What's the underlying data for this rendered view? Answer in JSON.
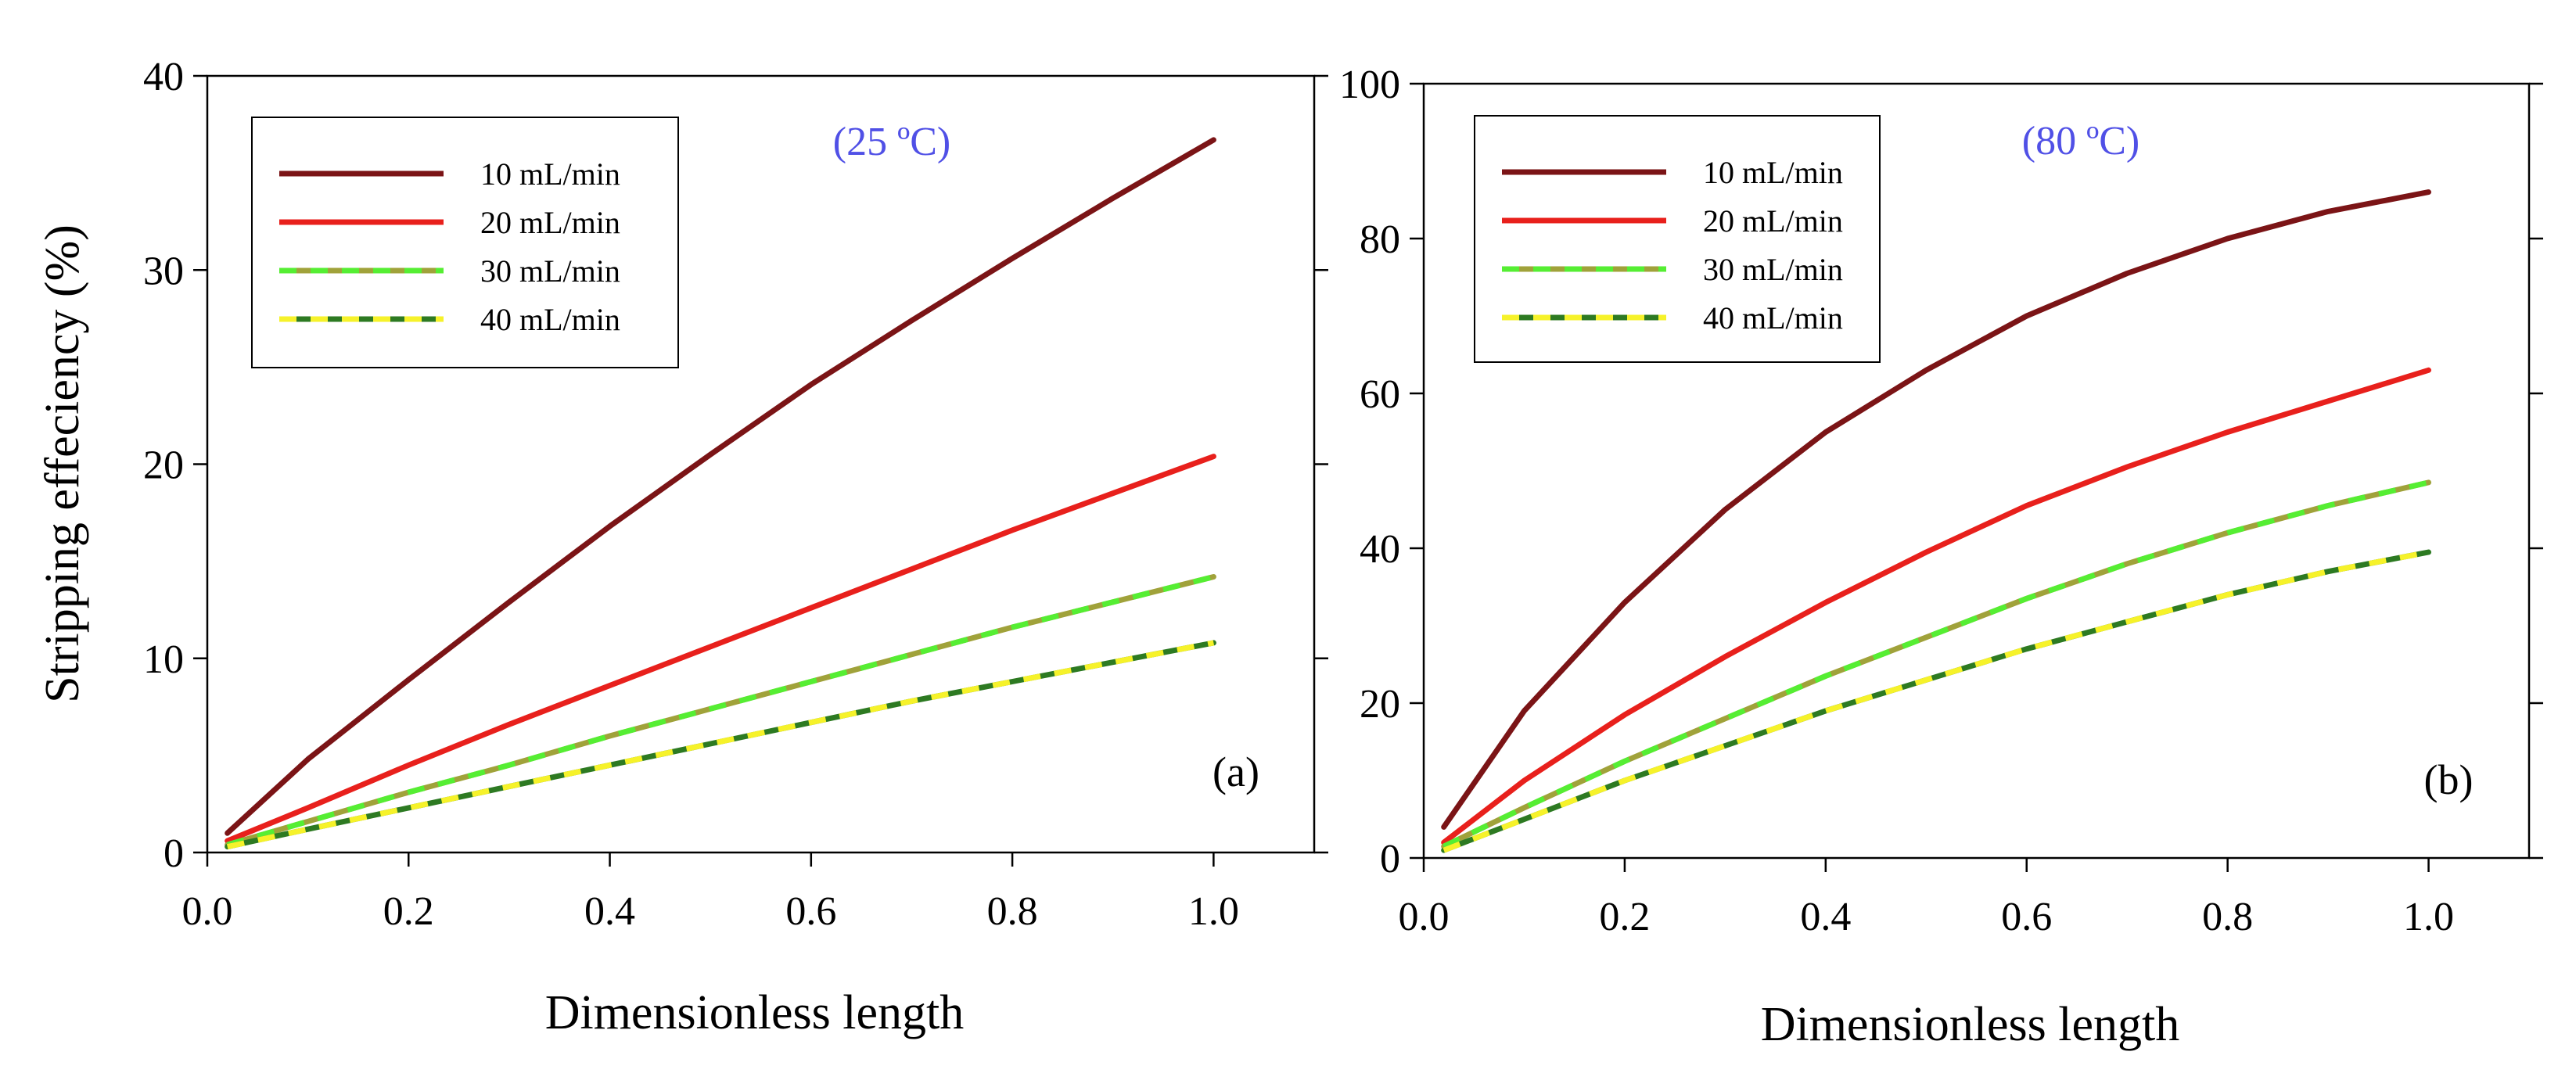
{
  "chart_data": [
    {
      "type": "line",
      "panel": "a",
      "panel_label": "(a)",
      "annotation": "(25 ºC)",
      "xlabel": "Dimensionless length",
      "ylabel": "Stripping effeciency (%)",
      "xlim": [
        0.0,
        1.1
      ],
      "ylim": [
        0,
        40
      ],
      "xticks": [
        0.0,
        0.2,
        0.4,
        0.6,
        0.8,
        1.0
      ],
      "xtick_labels": [
        "0.0",
        "0.2",
        "0.4",
        "0.6",
        "0.8",
        "1.0"
      ],
      "yticks": [
        0,
        10,
        20,
        30,
        40
      ],
      "ytick_labels": [
        "0",
        "10",
        "20",
        "30",
        "40"
      ],
      "grid": false,
      "legend_position": "top-left",
      "x": [
        0.02,
        0.1,
        0.2,
        0.3,
        0.4,
        0.5,
        0.6,
        0.7,
        0.8,
        0.9,
        1.0
      ],
      "series": [
        {
          "name": "10 mL/min",
          "values": [
            1.0,
            4.8,
            8.9,
            12.9,
            16.8,
            20.5,
            24.1,
            27.4,
            30.6,
            33.7,
            36.7
          ]
        },
        {
          "name": "20 mL/min",
          "values": [
            0.6,
            2.3,
            4.5,
            6.6,
            8.6,
            10.6,
            12.6,
            14.6,
            16.6,
            18.5,
            20.4
          ]
        },
        {
          "name": "30 mL/min",
          "values": [
            0.4,
            1.6,
            3.1,
            4.5,
            6.0,
            7.4,
            8.8,
            10.2,
            11.6,
            12.9,
            14.2
          ]
        },
        {
          "name": "40 mL/min",
          "values": [
            0.3,
            1.2,
            2.3,
            3.4,
            4.5,
            5.6,
            6.7,
            7.8,
            8.8,
            9.8,
            10.8
          ]
        }
      ]
    },
    {
      "type": "line",
      "panel": "b",
      "panel_label": "(b)",
      "annotation": "(80 ºC)",
      "xlabel": "Dimensionless length",
      "ylabel": "",
      "xlim": [
        0.0,
        1.1
      ],
      "ylim": [
        0,
        100
      ],
      "xticks": [
        0.0,
        0.2,
        0.4,
        0.6,
        0.8,
        1.0
      ],
      "xtick_labels": [
        "0.0",
        "0.2",
        "0.4",
        "0.6",
        "0.8",
        "1.0"
      ],
      "yticks": [
        0,
        20,
        40,
        60,
        80,
        100
      ],
      "ytick_labels": [
        "0",
        "20",
        "40",
        "60",
        "80",
        "100"
      ],
      "grid": false,
      "legend_position": "top-left",
      "x": [
        0.02,
        0.1,
        0.2,
        0.3,
        0.4,
        0.5,
        0.6,
        0.7,
        0.8,
        0.9,
        1.0
      ],
      "series": [
        {
          "name": "10 mL/min",
          "values": [
            4.0,
            19.0,
            33.0,
            45.0,
            55.0,
            63.0,
            70.0,
            75.5,
            80.0,
            83.5,
            86.0
          ]
        },
        {
          "name": "20 mL/min",
          "values": [
            2.0,
            10.0,
            18.5,
            26.0,
            33.0,
            39.5,
            45.5,
            50.5,
            55.0,
            59.0,
            63.0
          ]
        },
        {
          "name": "30 mL/min",
          "values": [
            1.5,
            6.5,
            12.5,
            18.0,
            23.5,
            28.5,
            33.5,
            38.0,
            42.0,
            45.5,
            48.5
          ]
        },
        {
          "name": "40 mL/min",
          "values": [
            1.0,
            5.0,
            10.0,
            14.5,
            19.0,
            23.0,
            27.0,
            30.5,
            34.0,
            37.0,
            39.5
          ]
        }
      ]
    }
  ],
  "series_styles": [
    {
      "color": "#7b1416",
      "dash": "",
      "overlay_color": "",
      "overlay_dash": ""
    },
    {
      "color": "#e8201c",
      "dash": "",
      "overlay_color": "",
      "overlay_dash": ""
    },
    {
      "color": "#a0a23a",
      "dash": "",
      "overlay_color": "#55ee33",
      "overlay_dash": "22 18"
    },
    {
      "color": "#2d7a22",
      "dash": "",
      "overlay_color": "#f6f22a",
      "overlay_dash": "22 18"
    }
  ],
  "annotation_color": "#5050e6"
}
